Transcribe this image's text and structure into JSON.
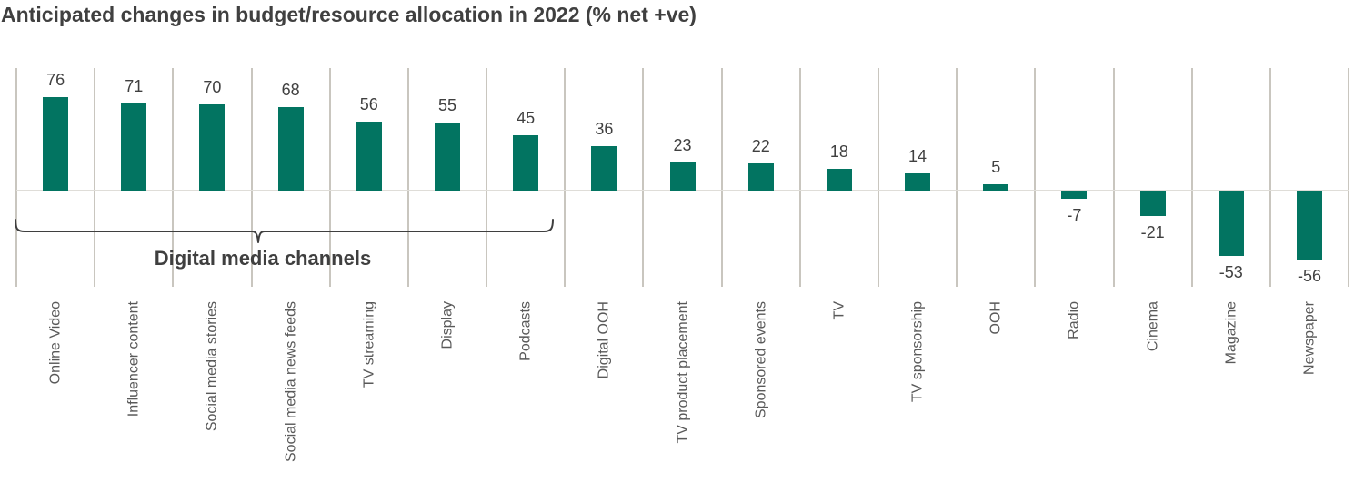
{
  "title": "Anticipated changes in budget/resource allocation in 2022 (% net +ve)",
  "chart_data": {
    "type": "bar",
    "title": "Anticipated changes in budget/resource allocation in 2022 (% net +ve)",
    "categories": [
      "Online Video",
      "Influencer content",
      "Social media stories",
      "Social media news feeds",
      "TV streaming",
      "Display",
      "Podcasts",
      "Digital OOH",
      "TV product placement",
      "Sponsored events",
      "TV",
      "TV sponsorship",
      "OOH",
      "Radio",
      "Cinema",
      "Magazine",
      "Newspaper"
    ],
    "values": [
      76,
      71,
      70,
      68,
      56,
      55,
      45,
      36,
      23,
      22,
      18,
      14,
      5,
      -7,
      -21,
      -53,
      -56
    ],
    "value_labels_shown": true,
    "xlabel": "",
    "ylabel": "",
    "ylim": [
      -75,
      100
    ],
    "grid": "vertical category separators, horizontal zero baseline, no y-axis ticks",
    "legend": "none",
    "annotation": {
      "label": "Digital media channels",
      "span_category_start": "Online Video",
      "span_category_end": "Podcasts",
      "span_indices": [
        0,
        6
      ],
      "style": "horizontal curly brace below axis pointing to label"
    }
  },
  "colors": {
    "bar": "#027461",
    "gridline": "#C9C6BF",
    "zero_line": "#DFDDD8",
    "title_text": "#404040",
    "value_text": "#404040",
    "category_text": "#595959",
    "brace": "#3F3F3F",
    "background": "#FFFFFF"
  }
}
